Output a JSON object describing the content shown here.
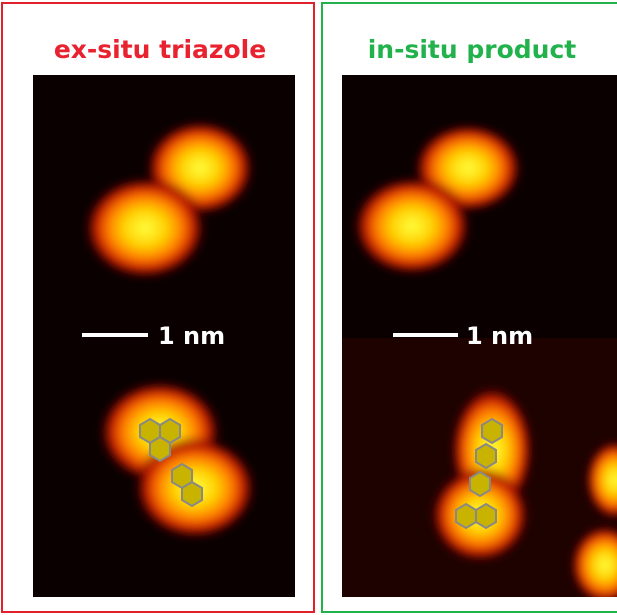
{
  "panels": [
    {
      "title": "ex-situ triazole",
      "scale_label": "1 nm"
    },
    {
      "title": "in-situ product",
      "scale_label": "1 nm"
    }
  ]
}
